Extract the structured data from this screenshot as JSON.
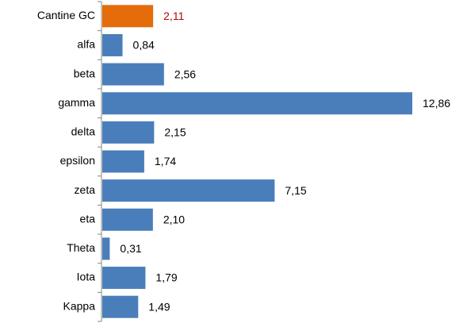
{
  "chart_data": {
    "type": "barh",
    "categories": [
      "Cantine GC",
      "alfa",
      "beta",
      "gamma",
      "delta",
      "epsilon",
      "zeta",
      "eta",
      "Theta",
      "Iota",
      "Kappa"
    ],
    "values": [
      2.11,
      0.84,
      2.56,
      12.86,
      2.15,
      1.74,
      7.15,
      2.1,
      0.31,
      1.79,
      1.49
    ],
    "value_labels": [
      "2,11",
      "0,84",
      "2,56",
      "12,86",
      "2,15",
      "1,74",
      "7,15",
      "2,10",
      "0,31",
      "1,79",
      "1,49"
    ],
    "colors": [
      "#e46c0a",
      "#4a7ebb",
      "#4a7ebb",
      "#4a7ebb",
      "#4a7ebb",
      "#4a7ebb",
      "#4a7ebb",
      "#4a7ebb",
      "#4a7ebb",
      "#4a7ebb",
      "#4a7ebb"
    ],
    "label_colors": [
      "#c00000",
      "#000000",
      "#000000",
      "#000000",
      "#000000",
      "#000000",
      "#000000",
      "#000000",
      "#000000",
      "#000000",
      "#000000"
    ]
  }
}
